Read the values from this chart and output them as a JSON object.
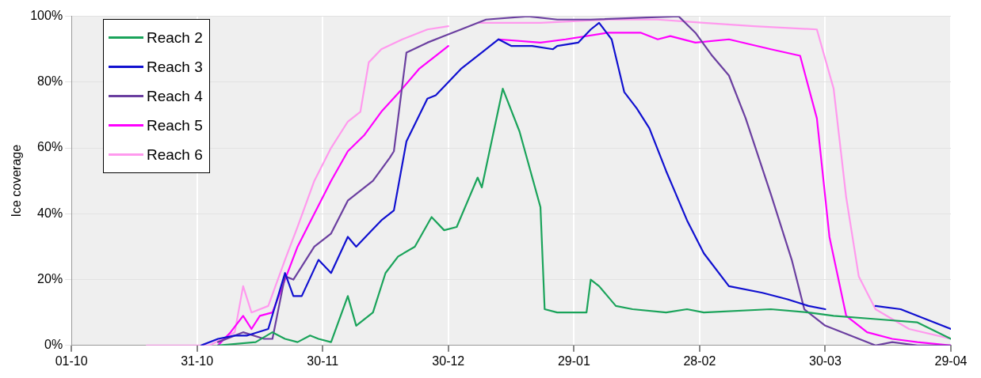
{
  "chart_data": {
    "type": "line",
    "ylabel": "Ice coverage",
    "xlim": [
      "2010-10-01",
      "2011-04-29"
    ],
    "xticks": [
      {
        "value": "2010-10-01",
        "label": "01-10"
      },
      {
        "value": "2010-10-31",
        "label": "31-10"
      },
      {
        "value": "2010-11-30",
        "label": "30-11"
      },
      {
        "value": "2010-12-30",
        "label": "30-12"
      },
      {
        "value": "2011-01-29",
        "label": "29-01"
      },
      {
        "value": "2011-02-28",
        "label": "28-02"
      },
      {
        "value": "2011-03-30",
        "label": "30-03"
      },
      {
        "value": "2011-04-29",
        "label": "29-04"
      }
    ],
    "ylim": [
      0,
      100
    ],
    "yticks": [
      {
        "value": 0,
        "label": "0%"
      },
      {
        "value": 20,
        "label": "20%"
      },
      {
        "value": 40,
        "label": "40%"
      },
      {
        "value": 60,
        "label": "60%"
      },
      {
        "value": 80,
        "label": "80%"
      },
      {
        "value": 100,
        "label": "100%"
      }
    ],
    "grid": true,
    "legend": "top left",
    "marker": "none",
    "line_style": "solid",
    "series": [
      {
        "name": "Reach 2",
        "color": "#1aa35a",
        "x": [
          "2010-11-05",
          "2010-11-14",
          "2010-11-18",
          "2010-11-21",
          "2010-11-24",
          "2010-11-27",
          "2010-11-29",
          "2010-12-02",
          "2010-12-06",
          "2010-12-08",
          "2010-12-12",
          "2010-12-15",
          "2010-12-18",
          "2010-12-22",
          "2010-12-26",
          "2010-12-29",
          "2011-01-01",
          "2011-01-06",
          "2011-01-07",
          "2011-01-12",
          "2011-01-16",
          "2011-01-21",
          "2011-01-22",
          "2011-01-25",
          "2011-01-29",
          "2011-02-01",
          "2011-02-02",
          "2011-02-04",
          "2011-02-08",
          "2011-02-12",
          "2011-02-20",
          "2011-02-25",
          "2011-03-01",
          "2011-03-17",
          "2011-03-26",
          "2011-04-01",
          "2011-04-11",
          "2011-04-21",
          "2011-04-29"
        ],
        "values": [
          0,
          1,
          4,
          2,
          1,
          3,
          2,
          1,
          15,
          6,
          10,
          22,
          27,
          30,
          39,
          35,
          36,
          51,
          48,
          78,
          65,
          42,
          11,
          10,
          10,
          10,
          20,
          18,
          12,
          11,
          10,
          11,
          10,
          11,
          10,
          9,
          8,
          7,
          2
        ]
      },
      {
        "name": "Reach 3",
        "color": "#1010d0",
        "x": [
          "2010-11-01",
          "2010-11-05",
          "2010-11-09",
          "2010-11-12",
          "2010-11-17",
          "2010-11-21",
          "2010-11-23",
          "2010-11-25",
          "2010-11-29",
          "2010-12-02",
          "2010-12-06",
          "2010-12-08",
          "2010-12-11",
          "2010-12-14",
          "2010-12-17",
          "2010-12-20",
          "2010-12-25",
          "2010-12-27",
          "2011-01-02",
          "2011-01-07",
          "2011-01-11",
          "2011-01-14",
          "2011-01-19",
          "2011-01-24",
          "2011-01-25",
          "2011-01-30",
          "2011-02-02",
          "2011-02-04",
          "2011-02-07",
          "2011-02-10",
          "2011-02-13",
          "2011-02-16",
          "2011-02-20",
          "2011-02-22",
          "2011-02-25",
          "2011-03-01",
          "2011-03-07",
          "2011-03-15",
          "2011-03-21",
          "2011-03-26",
          "2011-03-30",
          "2011-04-05",
          "2011-04-11",
          "2011-04-17",
          "2011-04-23",
          "2011-04-29"
        ],
        "values": [
          0,
          2,
          3,
          3,
          5,
          22,
          15,
          15,
          26,
          22,
          33,
          30,
          34,
          38,
          41,
          62,
          75,
          76,
          84,
          89,
          93,
          91,
          91,
          90,
          91,
          92,
          96,
          98,
          93,
          77,
          72,
          66,
          53,
          47,
          38,
          28,
          18,
          16,
          14,
          12,
          11,
          null,
          12,
          11,
          8,
          5
        ]
      },
      {
        "name": "Reach 4",
        "color": "#6b3fa0",
        "x": [
          "2010-11-05",
          "2010-11-11",
          "2010-11-16",
          "2010-11-18",
          "2010-11-21",
          "2010-11-23",
          "2010-11-28",
          "2010-12-02",
          "2010-12-06",
          "2010-12-09",
          "2010-12-12",
          "2010-12-16",
          "2010-12-17",
          "2010-12-20",
          "2010-12-25",
          "2010-12-29",
          "2011-01-02",
          "2011-01-08",
          "2011-01-18",
          "2011-01-25",
          "2011-02-02",
          "2011-02-23",
          "2011-02-27",
          "2011-03-03",
          "2011-03-07",
          "2011-03-11",
          "2011-03-17",
          "2011-03-22",
          "2011-03-25",
          "2011-03-30",
          "2011-04-05",
          "2011-04-11",
          "2011-04-15",
          "2011-04-21",
          "2011-04-29"
        ],
        "values": [
          1,
          4,
          2,
          2,
          21,
          20,
          30,
          34,
          44,
          47,
          50,
          57,
          59,
          89,
          92,
          94,
          96,
          99,
          100,
          99,
          99,
          100,
          95,
          88,
          82,
          69,
          46,
          26,
          11,
          6,
          3,
          0,
          1,
          0,
          0
        ]
      },
      {
        "name": "Reach 5",
        "color": "#ff00ff",
        "x": [
          "2010-11-05",
          "2010-11-08",
          "2010-11-11",
          "2010-11-13",
          "2010-11-15",
          "2010-11-18",
          "2010-11-21",
          "2010-11-24",
          "2010-11-28",
          "2010-12-02",
          "2010-12-06",
          "2010-12-10",
          "2010-12-14",
          "2010-12-19",
          "2010-12-23",
          "2010-12-27",
          "2010-12-30",
          "2011-01-05",
          "2011-01-11",
          "2011-01-21",
          "2011-01-27",
          "2011-02-06",
          "2011-02-14",
          "2011-02-18",
          "2011-02-21",
          "2011-02-27",
          "2011-03-07",
          "2011-03-17",
          "2011-03-24",
          "2011-03-28",
          "2011-03-31",
          "2011-04-04",
          "2011-04-09",
          "2011-04-15",
          "2011-04-21",
          "2011-04-29"
        ],
        "values": [
          0,
          4,
          9,
          5,
          9,
          10,
          20,
          30,
          40,
          50,
          59,
          64,
          71,
          78,
          84,
          88,
          91,
          null,
          93,
          92,
          93,
          95,
          95,
          93,
          94,
          92,
          93,
          90,
          88,
          69,
          33,
          9,
          4,
          2,
          1,
          0
        ]
      },
      {
        "name": "Reach 6",
        "color": "#ff99ee",
        "x": [
          "2010-10-19",
          "2010-11-03",
          "2010-11-09",
          "2010-11-11",
          "2010-11-13",
          "2010-11-17",
          "2010-11-21",
          "2010-11-24",
          "2010-11-28",
          "2010-12-02",
          "2010-12-06",
          "2010-12-09",
          "2010-12-11",
          "2010-12-14",
          "2010-12-19",
          "2010-12-25",
          "2010-12-30",
          "2011-01-03",
          "2011-01-06",
          "2011-01-21",
          "2011-02-06",
          "2011-02-18",
          "2011-03-01",
          "2011-03-13",
          "2011-03-28",
          "2011-04-01",
          "2011-04-04",
          "2011-04-07",
          "2011-04-11",
          "2011-04-19",
          "2011-04-29"
        ],
        "values": [
          0,
          0,
          4,
          18,
          10,
          12,
          26,
          36,
          50,
          60,
          68,
          71,
          86,
          90,
          93,
          96,
          97,
          null,
          98,
          98,
          99,
          99,
          98,
          97,
          96,
          78,
          45,
          21,
          11,
          5,
          2
        ]
      }
    ]
  }
}
